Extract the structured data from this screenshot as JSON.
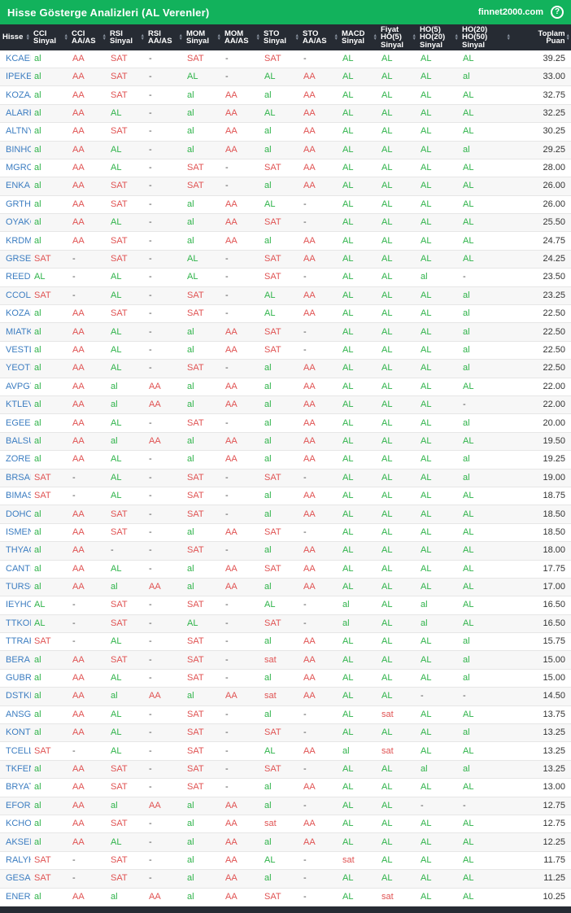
{
  "title_bar": {
    "title": "Hisse Gösterge Analizleri (AL Verenler)",
    "site": "finnet2000.com",
    "help_icon": "?"
  },
  "colors": {
    "accent_green": "#12b25c",
    "header_bg": "#262b33",
    "positive_green": "#2fb34a",
    "negative_red": "#e05252",
    "ticker_blue": "#3c7dc1"
  },
  "table": {
    "sort_asc_glyph": "▲",
    "sort_desc_glyph": "▼",
    "columns": [
      {
        "label": "Hisse",
        "lines": [
          "Hisse"
        ]
      },
      {
        "label": "CCI Sinyal",
        "lines": [
          "CCI",
          "Sinyal"
        ]
      },
      {
        "label": "CCI AA/AS",
        "lines": [
          "CCI",
          "AA/AS"
        ]
      },
      {
        "label": "RSI Sinyal",
        "lines": [
          "RSI",
          "Sinyal"
        ]
      },
      {
        "label": "RSI AA/AS",
        "lines": [
          "RSI",
          "AA/AS"
        ]
      },
      {
        "label": "MOM Sinyal",
        "lines": [
          "MOM",
          "Sinyal"
        ]
      },
      {
        "label": "MOM AA/AS",
        "lines": [
          "MOM",
          "AA/AS"
        ]
      },
      {
        "label": "STO Sinyal",
        "lines": [
          "STO",
          "Sinyal"
        ]
      },
      {
        "label": "STO AA/AS",
        "lines": [
          "STO",
          "AA/AS"
        ]
      },
      {
        "label": "MACD Sinyal",
        "lines": [
          "MACD",
          "Sinyal"
        ]
      },
      {
        "label": "Fiyat HO(5) Sinyal",
        "lines": [
          "Fiyat",
          "HO(5)",
          "Sinyal"
        ]
      },
      {
        "label": "HO(5) HO(20) Sinyal",
        "lines": [
          "HO(5)",
          "HO(20)",
          "Sinyal"
        ]
      },
      {
        "label": "HO(20) HO(50) Sinyal",
        "lines": [
          "HO(20)",
          "HO(50)",
          "Sinyal"
        ]
      },
      {
        "label": "Toplam Puan",
        "lines": [
          "Toplam",
          "Puan"
        ]
      }
    ],
    "rows": [
      {
        "ticker": "KCAER",
        "values": [
          "al",
          "AA",
          "SAT",
          "-",
          "SAT",
          "-",
          "SAT",
          "-",
          "AL",
          "AL",
          "AL",
          "AL"
        ],
        "score": "39.25"
      },
      {
        "ticker": "IPEKE",
        "values": [
          "al",
          "AA",
          "SAT",
          "-",
          "AL",
          "-",
          "AL",
          "AA",
          "AL",
          "AL",
          "AL",
          "al"
        ],
        "score": "33.00"
      },
      {
        "ticker": "KOZAA",
        "values": [
          "al",
          "AA",
          "SAT",
          "-",
          "al",
          "AA",
          "al",
          "AA",
          "AL",
          "AL",
          "AL",
          "AL"
        ],
        "score": "32.75"
      },
      {
        "ticker": "ALARK",
        "values": [
          "al",
          "AA",
          "AL",
          "-",
          "al",
          "AA",
          "AL",
          "AA",
          "AL",
          "AL",
          "AL",
          "AL"
        ],
        "score": "32.25"
      },
      {
        "ticker": "ALTNY",
        "values": [
          "al",
          "AA",
          "SAT",
          "-",
          "al",
          "AA",
          "al",
          "AA",
          "AL",
          "AL",
          "AL",
          "AL"
        ],
        "score": "30.25"
      },
      {
        "ticker": "BINHO",
        "values": [
          "al",
          "AA",
          "AL",
          "-",
          "al",
          "AA",
          "al",
          "AA",
          "AL",
          "AL",
          "AL",
          "al"
        ],
        "score": "29.25"
      },
      {
        "ticker": "MGROS",
        "values": [
          "al",
          "AA",
          "AL",
          "-",
          "SAT",
          "-",
          "SAT",
          "AA",
          "AL",
          "AL",
          "AL",
          "AL"
        ],
        "score": "28.00"
      },
      {
        "ticker": "ENKAI",
        "values": [
          "al",
          "AA",
          "SAT",
          "-",
          "SAT",
          "-",
          "al",
          "AA",
          "AL",
          "AL",
          "AL",
          "AL"
        ],
        "score": "26.00"
      },
      {
        "ticker": "GRTHO",
        "values": [
          "al",
          "AA",
          "SAT",
          "-",
          "al",
          "AA",
          "AL",
          "-",
          "AL",
          "AL",
          "AL",
          "AL"
        ],
        "score": "26.00"
      },
      {
        "ticker": "OYAKC",
        "values": [
          "al",
          "AA",
          "AL",
          "-",
          "al",
          "AA",
          "SAT",
          "-",
          "AL",
          "AL",
          "AL",
          "AL"
        ],
        "score": "25.50"
      },
      {
        "ticker": "KRDMD",
        "values": [
          "al",
          "AA",
          "SAT",
          "-",
          "al",
          "AA",
          "al",
          "AA",
          "AL",
          "AL",
          "AL",
          "AL"
        ],
        "score": "24.75"
      },
      {
        "ticker": "GRSEL",
        "values": [
          "SAT",
          "-",
          "SAT",
          "-",
          "AL",
          "-",
          "SAT",
          "AA",
          "AL",
          "AL",
          "AL",
          "AL"
        ],
        "score": "24.25"
      },
      {
        "ticker": "REEDR",
        "values": [
          "AL",
          "-",
          "AL",
          "-",
          "AL",
          "-",
          "SAT",
          "-",
          "AL",
          "AL",
          "al",
          "-"
        ],
        "score": "23.50"
      },
      {
        "ticker": "CCOLA",
        "values": [
          "SAT",
          "-",
          "AL",
          "-",
          "SAT",
          "-",
          "AL",
          "AA",
          "AL",
          "AL",
          "AL",
          "al"
        ],
        "score": "23.25"
      },
      {
        "ticker": "KOZAL",
        "values": [
          "al",
          "AA",
          "SAT",
          "-",
          "SAT",
          "-",
          "AL",
          "AA",
          "AL",
          "AL",
          "AL",
          "al"
        ],
        "score": "22.50"
      },
      {
        "ticker": "MIATK",
        "values": [
          "al",
          "AA",
          "AL",
          "-",
          "al",
          "AA",
          "SAT",
          "-",
          "AL",
          "AL",
          "AL",
          "al"
        ],
        "score": "22.50"
      },
      {
        "ticker": "VESTL",
        "values": [
          "al",
          "AA",
          "AL",
          "-",
          "al",
          "AA",
          "SAT",
          "-",
          "AL",
          "AL",
          "AL",
          "al"
        ],
        "score": "22.50"
      },
      {
        "ticker": "YEOTK",
        "values": [
          "al",
          "AA",
          "AL",
          "-",
          "SAT",
          "-",
          "al",
          "AA",
          "AL",
          "AL",
          "AL",
          "al"
        ],
        "score": "22.50"
      },
      {
        "ticker": "AVPGY",
        "values": [
          "al",
          "AA",
          "al",
          "AA",
          "al",
          "AA",
          "al",
          "AA",
          "AL",
          "AL",
          "AL",
          "AL"
        ],
        "score": "22.00"
      },
      {
        "ticker": "KTLEV",
        "values": [
          "al",
          "AA",
          "al",
          "AA",
          "al",
          "AA",
          "al",
          "AA",
          "AL",
          "AL",
          "AL",
          "-"
        ],
        "score": "22.00"
      },
      {
        "ticker": "EGEEN",
        "values": [
          "al",
          "AA",
          "AL",
          "-",
          "SAT",
          "-",
          "al",
          "AA",
          "AL",
          "AL",
          "AL",
          "al"
        ],
        "score": "20.00"
      },
      {
        "ticker": "BALSU",
        "values": [
          "al",
          "AA",
          "al",
          "AA",
          "al",
          "AA",
          "al",
          "AA",
          "AL",
          "AL",
          "AL",
          "AL"
        ],
        "score": "19.50"
      },
      {
        "ticker": "ZOREN",
        "values": [
          "al",
          "AA",
          "AL",
          "-",
          "al",
          "AA",
          "al",
          "AA",
          "AL",
          "AL",
          "AL",
          "al"
        ],
        "score": "19.25"
      },
      {
        "ticker": "BRSAN",
        "values": [
          "SAT",
          "-",
          "AL",
          "-",
          "SAT",
          "-",
          "SAT",
          "-",
          "AL",
          "AL",
          "AL",
          "al"
        ],
        "score": "19.00"
      },
      {
        "ticker": "BIMAS",
        "values": [
          "SAT",
          "-",
          "AL",
          "-",
          "SAT",
          "-",
          "al",
          "AA",
          "AL",
          "AL",
          "AL",
          "AL"
        ],
        "score": "18.75"
      },
      {
        "ticker": "DOHOL",
        "values": [
          "al",
          "AA",
          "SAT",
          "-",
          "SAT",
          "-",
          "al",
          "AA",
          "AL",
          "AL",
          "AL",
          "AL"
        ],
        "score": "18.50"
      },
      {
        "ticker": "ISMEN",
        "values": [
          "al",
          "AA",
          "SAT",
          "-",
          "al",
          "AA",
          "SAT",
          "-",
          "AL",
          "AL",
          "AL",
          "AL"
        ],
        "score": "18.50"
      },
      {
        "ticker": "THYAO",
        "values": [
          "al",
          "AA",
          "-",
          "-",
          "SAT",
          "-",
          "al",
          "AA",
          "AL",
          "AL",
          "AL",
          "AL"
        ],
        "score": "18.00"
      },
      {
        "ticker": "CANTE",
        "values": [
          "al",
          "AA",
          "AL",
          "-",
          "al",
          "AA",
          "SAT",
          "AA",
          "AL",
          "AL",
          "AL",
          "AL"
        ],
        "score": "17.75"
      },
      {
        "ticker": "TURSG",
        "values": [
          "al",
          "AA",
          "al",
          "AA",
          "al",
          "AA",
          "al",
          "AA",
          "AL",
          "AL",
          "AL",
          "AL"
        ],
        "score": "17.00"
      },
      {
        "ticker": "IEYHO",
        "values": [
          "AL",
          "-",
          "SAT",
          "-",
          "SAT",
          "-",
          "AL",
          "-",
          "al",
          "AL",
          "al",
          "AL"
        ],
        "score": "16.50"
      },
      {
        "ticker": "TTKOM",
        "values": [
          "AL",
          "-",
          "SAT",
          "-",
          "AL",
          "-",
          "SAT",
          "-",
          "al",
          "AL",
          "al",
          "AL"
        ],
        "score": "16.50"
      },
      {
        "ticker": "TTRAK",
        "values": [
          "SAT",
          "-",
          "AL",
          "-",
          "SAT",
          "-",
          "al",
          "AA",
          "AL",
          "AL",
          "AL",
          "al"
        ],
        "score": "15.75"
      },
      {
        "ticker": "BERA",
        "values": [
          "al",
          "AA",
          "SAT",
          "-",
          "SAT",
          "-",
          "sat",
          "AA",
          "AL",
          "AL",
          "AL",
          "al"
        ],
        "score": "15.00"
      },
      {
        "ticker": "GUBRF",
        "values": [
          "al",
          "AA",
          "AL",
          "-",
          "SAT",
          "-",
          "al",
          "AA",
          "AL",
          "AL",
          "AL",
          "al"
        ],
        "score": "15.00"
      },
      {
        "ticker": "DSTKF",
        "values": [
          "al",
          "AA",
          "al",
          "AA",
          "al",
          "AA",
          "sat",
          "AA",
          "AL",
          "AL",
          "-",
          "-"
        ],
        "score": "14.50"
      },
      {
        "ticker": "ANSGR",
        "values": [
          "al",
          "AA",
          "AL",
          "-",
          "SAT",
          "-",
          "al",
          "-",
          "AL",
          "sat",
          "AL",
          "AL"
        ],
        "score": "13.75"
      },
      {
        "ticker": "KONTR",
        "values": [
          "al",
          "AA",
          "AL",
          "-",
          "SAT",
          "-",
          "SAT",
          "-",
          "AL",
          "AL",
          "AL",
          "al"
        ],
        "score": "13.25"
      },
      {
        "ticker": "TCELL",
        "values": [
          "SAT",
          "-",
          "AL",
          "-",
          "SAT",
          "-",
          "AL",
          "AA",
          "al",
          "sat",
          "AL",
          "AL"
        ],
        "score": "13.25"
      },
      {
        "ticker": "TKFEN",
        "values": [
          "al",
          "AA",
          "SAT",
          "-",
          "SAT",
          "-",
          "SAT",
          "-",
          "AL",
          "AL",
          "al",
          "al"
        ],
        "score": "13.25"
      },
      {
        "ticker": "BRYAT",
        "values": [
          "al",
          "AA",
          "SAT",
          "-",
          "SAT",
          "-",
          "al",
          "AA",
          "AL",
          "AL",
          "AL",
          "AL"
        ],
        "score": "13.00"
      },
      {
        "ticker": "EFORC",
        "values": [
          "al",
          "AA",
          "al",
          "AA",
          "al",
          "AA",
          "al",
          "-",
          "AL",
          "AL",
          "-",
          "-"
        ],
        "score": "12.75"
      },
      {
        "ticker": "KCHOL",
        "values": [
          "al",
          "AA",
          "SAT",
          "-",
          "al",
          "AA",
          "sat",
          "AA",
          "AL",
          "AL",
          "AL",
          "AL"
        ],
        "score": "12.75"
      },
      {
        "ticker": "AKSEN",
        "values": [
          "al",
          "AA",
          "AL",
          "-",
          "al",
          "AA",
          "al",
          "AA",
          "AL",
          "AL",
          "AL",
          "AL"
        ],
        "score": "12.25"
      },
      {
        "ticker": "RALYH",
        "values": [
          "SAT",
          "-",
          "SAT",
          "-",
          "al",
          "AA",
          "AL",
          "-",
          "sat",
          "AL",
          "AL",
          "AL"
        ],
        "score": "11.75"
      },
      {
        "ticker": "GESAN",
        "values": [
          "SAT",
          "-",
          "SAT",
          "-",
          "al",
          "AA",
          "al",
          "-",
          "AL",
          "AL",
          "AL",
          "AL"
        ],
        "score": "11.25"
      },
      {
        "ticker": "ENERY",
        "values": [
          "al",
          "AA",
          "al",
          "AA",
          "al",
          "AA",
          "SAT",
          "-",
          "AL",
          "sat",
          "AL",
          "AL"
        ],
        "score": "10.25"
      }
    ]
  }
}
